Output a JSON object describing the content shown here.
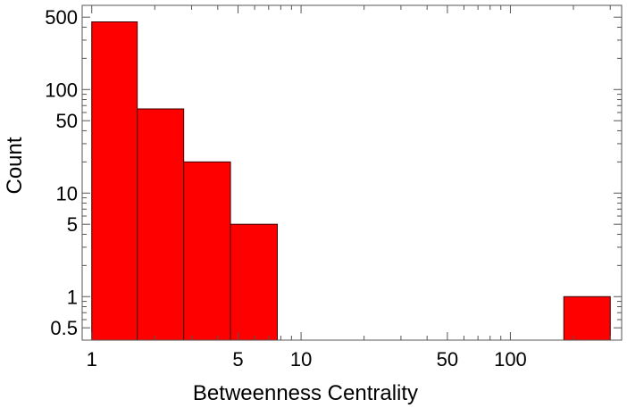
{
  "chart_data": {
    "type": "bar",
    "subtype": "histogram",
    "xscale": "log",
    "yscale": "log",
    "xlabel": "Betweenness Centrality",
    "ylabel": "Count",
    "xlim": [
      0.9,
      340
    ],
    "ylim": [
      0.38,
      650
    ],
    "grid": false,
    "bars": [
      {
        "x0": 1.0,
        "x1": 1.65,
        "count": 450
      },
      {
        "x0": 1.65,
        "x1": 2.75,
        "count": 65
      },
      {
        "x0": 2.75,
        "x1": 4.6,
        "count": 20
      },
      {
        "x0": 4.6,
        "x1": 7.7,
        "count": 5
      },
      {
        "x0": 180,
        "x1": 300,
        "count": 1
      }
    ],
    "x_ticks": {
      "labeled": [
        {
          "value": 1,
          "label": "1"
        },
        {
          "value": 5,
          "label": "5"
        },
        {
          "value": 10,
          "label": "10"
        },
        {
          "value": 50,
          "label": "50"
        },
        {
          "value": 100,
          "label": "100"
        }
      ],
      "minor": [
        2,
        3,
        4,
        6,
        7,
        8,
        9,
        20,
        30,
        40,
        60,
        70,
        80,
        90,
        200,
        300
      ]
    },
    "y_ticks": {
      "labeled": [
        {
          "value": 0.5,
          "label": "0.5"
        },
        {
          "value": 1,
          "label": "1"
        },
        {
          "value": 5,
          "label": "5"
        },
        {
          "value": 10,
          "label": "10"
        },
        {
          "value": 50,
          "label": "50"
        },
        {
          "value": 100,
          "label": "100"
        },
        {
          "value": 500,
          "label": "500"
        }
      ],
      "minor": [
        0.6,
        0.7,
        0.8,
        0.9,
        2,
        3,
        4,
        6,
        7,
        8,
        9,
        20,
        30,
        40,
        60,
        70,
        80,
        90,
        200,
        300,
        400
      ]
    },
    "colors": {
      "bar_fill": "#ff0000",
      "bar_edge": "#3a0000",
      "frame": "#555555"
    }
  }
}
